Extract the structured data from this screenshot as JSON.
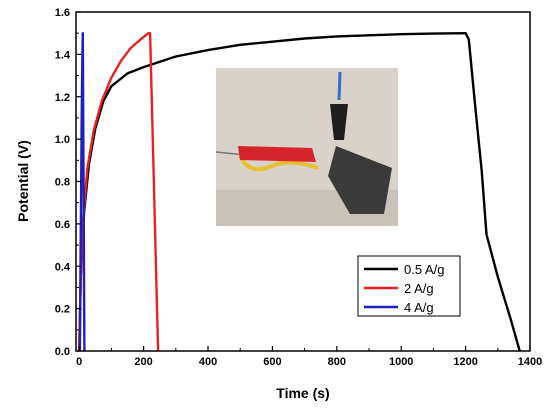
{
  "chart_data": {
    "type": "line",
    "title": "",
    "xlabel": "Time (s)",
    "ylabel": "Potential (V)",
    "xlim": [
      -10,
      1400
    ],
    "ylim": [
      0.0,
      1.6
    ],
    "xticks": [
      0,
      200,
      400,
      600,
      800,
      1000,
      1200,
      1400
    ],
    "yticks": [
      0.0,
      0.2,
      0.4,
      0.6,
      0.8,
      1.0,
      1.2,
      1.4,
      1.6
    ],
    "x_tick_labels": [
      "0",
      "200",
      "400",
      "600",
      "800",
      "1000",
      "1200",
      "1400"
    ],
    "y_tick_labels": [
      "0.0",
      "0.2",
      "0.4",
      "0.6",
      "0.8",
      "1.0",
      "1.2",
      "1.4",
      "1.6"
    ],
    "grid": false,
    "legend_position": "bottom-right",
    "inset_image": "photo of red and black alligator clips attached to a supercapacitor device",
    "series": [
      {
        "name": "0.5 A/g",
        "color": "#000000",
        "points": [
          [
            0,
            0
          ],
          [
            5,
            0.35
          ],
          [
            15,
            0.65
          ],
          [
            30,
            0.88
          ],
          [
            50,
            1.05
          ],
          [
            75,
            1.18
          ],
          [
            100,
            1.25
          ],
          [
            150,
            1.31
          ],
          [
            200,
            1.34
          ],
          [
            300,
            1.39
          ],
          [
            400,
            1.42
          ],
          [
            500,
            1.445
          ],
          [
            600,
            1.46
          ],
          [
            700,
            1.475
          ],
          [
            800,
            1.485
          ],
          [
            900,
            1.49
          ],
          [
            1000,
            1.495
          ],
          [
            1100,
            1.498
          ],
          [
            1200,
            1.5
          ],
          [
            1210,
            1.47
          ],
          [
            1230,
            1.15
          ],
          [
            1250,
            0.85
          ],
          [
            1265,
            0.55
          ],
          [
            1300,
            0.35
          ],
          [
            1340,
            0.15
          ],
          [
            1368,
            0.0
          ]
        ]
      },
      {
        "name": "2 A/g",
        "color": "#e82020",
        "points": [
          [
            0,
            0
          ],
          [
            5,
            0.35
          ],
          [
            12,
            0.62
          ],
          [
            25,
            0.86
          ],
          [
            45,
            1.04
          ],
          [
            70,
            1.18
          ],
          [
            100,
            1.29
          ],
          [
            130,
            1.37
          ],
          [
            160,
            1.43
          ],
          [
            190,
            1.47
          ],
          [
            215,
            1.5
          ],
          [
            220,
            1.5
          ],
          [
            245,
            0.0
          ]
        ]
      },
      {
        "name": "4 A/g",
        "color": "#1f1fbd",
        "points": [
          [
            2,
            0
          ],
          [
            4,
            0.4
          ],
          [
            6,
            0.8
          ],
          [
            8,
            1.15
          ],
          [
            10,
            1.4
          ],
          [
            11,
            1.5
          ],
          [
            16,
            0.0
          ]
        ]
      }
    ]
  }
}
